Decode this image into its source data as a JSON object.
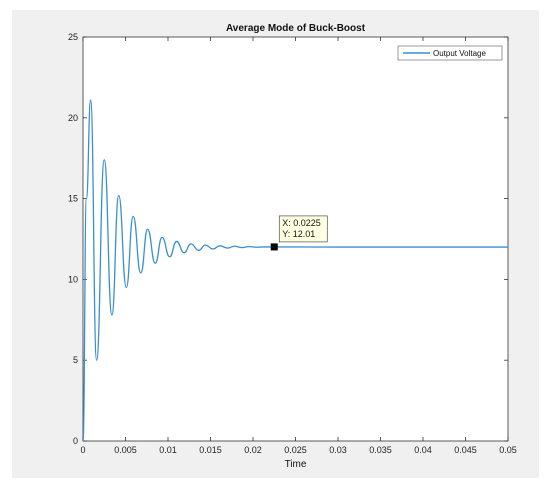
{
  "chart_data": {
    "type": "line",
    "title": "Average Mode of Buck-Boost",
    "xlabel": "Time",
    "ylabel": "",
    "xlim": [
      0,
      0.05
    ],
    "ylim": [
      0,
      25
    ],
    "x_ticks": [
      "0",
      "0.005",
      "0.01",
      "0.015",
      "0.02",
      "0.025",
      "0.03",
      "0.035",
      "0.04",
      "0.045",
      "0.05"
    ],
    "y_ticks": [
      "0",
      "5",
      "10",
      "15",
      "20",
      "25"
    ],
    "grid": false,
    "legend_position": "top-right",
    "series": [
      {
        "name": "Output Voltage",
        "color": "#3a8fd0",
        "x": [
          0,
          0.0004,
          0.0009,
          0.0016,
          0.0025,
          0.0034,
          0.0042,
          0.0051,
          0.0059,
          0.0068,
          0.0076,
          0.0085,
          0.0093,
          0.0102,
          0.011,
          0.0119,
          0.0127,
          0.0136,
          0.0144,
          0.0153,
          0.0161,
          0.017,
          0.0178,
          0.0187,
          0.0195,
          0.0204,
          0.0212,
          0.0225,
          0.03,
          0.04,
          0.05
        ],
        "y": [
          0,
          15,
          21.1,
          5.0,
          17.4,
          7.8,
          15.2,
          9.5,
          13.9,
          10.4,
          13.1,
          11.0,
          12.6,
          11.4,
          12.35,
          11.65,
          12.2,
          11.8,
          12.12,
          11.88,
          12.08,
          11.94,
          12.05,
          11.97,
          12.03,
          11.99,
          12.01,
          12.01,
          12.0,
          12.0,
          12.0
        ]
      }
    ],
    "datatip": {
      "x_text": "X: 0.0225",
      "y_text": "Y: 12.01",
      "x": 0.0225,
      "y": 12.01
    }
  }
}
